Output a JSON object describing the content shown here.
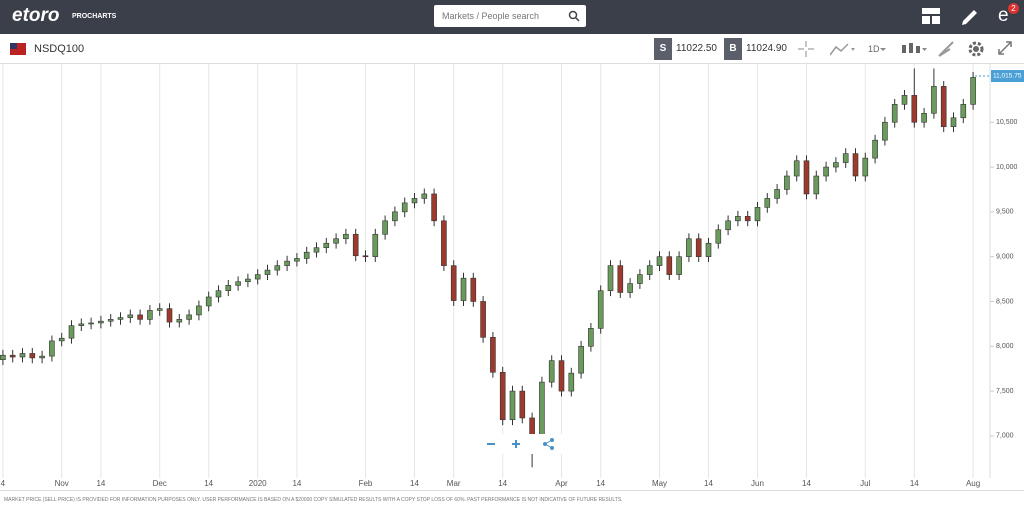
{
  "header": {
    "logo": "etoro",
    "logo_sub": "PROCHARTS",
    "search_placeholder": "Markets / People search",
    "badge": "2"
  },
  "toolbar": {
    "instrument": "NSDQ100",
    "sell_label": "S",
    "sell_price": "11022.50",
    "buy_label": "B",
    "buy_price": "11024.90",
    "interval": "1D"
  },
  "footer": {
    "disclaimer": "MARKET PRICE (SELL PRICE) IS PROVIDED FOR INFORMATION PURPOSES ONLY. USER PERFORMANCE IS BASED ON A $20000 COPY SIMULATED RESULTS WITH A COPY STOP LOSS OF 60%. PAST PERFORMANCE IS NOT INDICATIVE OF FUTURE RESULTS."
  },
  "chart_data": {
    "type": "candlestick",
    "categories": [
      "4",
      null,
      null,
      null,
      null,
      null,
      "Nov",
      null,
      null,
      null,
      "14",
      null,
      null,
      null,
      null,
      null,
      "Dec",
      null,
      null,
      null,
      null,
      "14",
      null,
      null,
      null,
      null,
      "2020",
      null,
      null,
      null,
      "14",
      null,
      null,
      null,
      null,
      null,
      null,
      "Feb",
      null,
      null,
      null,
      null,
      "14",
      null,
      null,
      null,
      "Mar",
      null,
      null,
      null,
      null,
      "14",
      null,
      null,
      null,
      null,
      null,
      "Apr",
      null,
      null,
      null,
      "14",
      null,
      null,
      null,
      null,
      null,
      "May",
      null,
      null,
      null,
      null,
      "14",
      null,
      null,
      null,
      null,
      "Jun",
      null,
      null,
      null,
      null,
      "14",
      null,
      null,
      null,
      null,
      null,
      "Jul",
      null,
      null,
      null,
      null,
      "14",
      null,
      null,
      null,
      null,
      null,
      "Aug"
    ],
    "open": [
      7850,
      7900,
      7880,
      7920,
      7870,
      7890,
      8060,
      8090,
      8230,
      8250,
      8260,
      8280,
      8300,
      8320,
      8350,
      8300,
      8400,
      8420,
      8270,
      8300,
      8350,
      8450,
      8550,
      8620,
      8680,
      8720,
      8750,
      8800,
      8850,
      8900,
      8950,
      8980,
      9050,
      9100,
      9150,
      9200,
      9250,
      9010,
      9000,
      9250,
      9400,
      9500,
      9600,
      9650,
      9700,
      9400,
      8900,
      8510,
      8760,
      8500,
      8100,
      7710,
      7180,
      7500,
      7200,
      6900,
      7600,
      7840,
      7500,
      7700,
      8000,
      8200,
      8620,
      8900,
      8600,
      8700,
      8800,
      8900,
      9000,
      8800,
      9000,
      9200,
      9000,
      9150,
      9300,
      9400,
      9450,
      9400,
      9550,
      9650,
      9750,
      9900,
      10070,
      9700,
      9900,
      10000,
      10050,
      10150,
      9900,
      10100,
      10300,
      10500,
      10700,
      10800,
      10500,
      10600,
      10900,
      10450,
      10550,
      10700
    ],
    "high": [
      7960,
      7960,
      7980,
      7980,
      7950,
      8120,
      8150,
      8290,
      8310,
      8320,
      8340,
      8360,
      8380,
      8410,
      8410,
      8460,
      8480,
      8480,
      8360,
      8410,
      8510,
      8610,
      8680,
      8740,
      8780,
      8810,
      8860,
      8910,
      8960,
      9010,
      9040,
      9110,
      9160,
      9210,
      9260,
      9310,
      9310,
      9070,
      9310,
      9460,
      9560,
      9660,
      9710,
      9760,
      9760,
      9460,
      8960,
      8820,
      8820,
      8560,
      8160,
      7770,
      7560,
      7560,
      7260,
      7660,
      7900,
      7900,
      7760,
      8060,
      8260,
      8680,
      8960,
      8960,
      8760,
      8860,
      8960,
      9060,
      9060,
      9060,
      9260,
      9260,
      9210,
      9360,
      9460,
      9510,
      9510,
      9610,
      9710,
      9810,
      9960,
      10130,
      10130,
      9960,
      10060,
      10110,
      10210,
      10210,
      10160,
      10360,
      10560,
      10760,
      10860,
      11100,
      10660,
      11100,
      10960,
      10610,
      10760,
      11060
    ],
    "low": [
      7790,
      7820,
      7820,
      7810,
      7810,
      7830,
      8000,
      8030,
      8170,
      8190,
      8200,
      8220,
      8240,
      8260,
      8240,
      8240,
      8340,
      8210,
      8210,
      8240,
      8290,
      8390,
      8490,
      8560,
      8620,
      8660,
      8690,
      8740,
      8790,
      8840,
      8890,
      8920,
      8990,
      9040,
      9090,
      9140,
      8950,
      8940,
      8940,
      9190,
      9340,
      9440,
      9540,
      9590,
      9340,
      8840,
      8450,
      8450,
      8440,
      8040,
      7650,
      7120,
      7120,
      7140,
      6650,
      6840,
      7540,
      7440,
      7440,
      7640,
      7940,
      8140,
      8560,
      8540,
      8540,
      8640,
      8740,
      8840,
      8740,
      8740,
      8940,
      8940,
      8940,
      9090,
      9240,
      9340,
      9340,
      9340,
      9490,
      9590,
      9690,
      9840,
      9640,
      9640,
      9840,
      9940,
      9990,
      9840,
      9840,
      10040,
      10240,
      10440,
      10640,
      10440,
      10440,
      10540,
      10390,
      10390,
      10490,
      10640
    ],
    "close": [
      7900,
      7880,
      7920,
      7870,
      7890,
      8060,
      8090,
      8230,
      8250,
      8260,
      8280,
      8300,
      8320,
      8350,
      8300,
      8400,
      8420,
      8270,
      8300,
      8350,
      8450,
      8550,
      8620,
      8680,
      8720,
      8750,
      8800,
      8850,
      8900,
      8950,
      8980,
      9050,
      9100,
      9150,
      9200,
      9250,
      9010,
      9000,
      9250,
      9400,
      9500,
      9600,
      9650,
      9700,
      9400,
      8900,
      8510,
      8760,
      8500,
      8100,
      7710,
      7180,
      7500,
      7200,
      6900,
      7600,
      7840,
      7500,
      7700,
      8000,
      8200,
      8620,
      8900,
      8600,
      8700,
      8800,
      8900,
      9000,
      8800,
      9000,
      9200,
      9000,
      9150,
      9300,
      9400,
      9450,
      9400,
      9550,
      9650,
      9750,
      9900,
      10070,
      9700,
      9900,
      10000,
      10050,
      10150,
      9900,
      10100,
      10300,
      10500,
      10700,
      10800,
      10500,
      10600,
      10900,
      10450,
      10550,
      10700,
      11000
    ],
    "up_color": "#6a9a5c",
    "down_color": "#9c3a2e",
    "ylim": [
      6530,
      11150
    ],
    "yticks": [
      {
        "value": 7000,
        "label": "7,000"
      },
      {
        "value": 7500,
        "label": "7,500"
      },
      {
        "value": 8000,
        "label": "8,000"
      },
      {
        "value": 8500,
        "label": "8,500"
      },
      {
        "value": 9000,
        "label": "9,000"
      },
      {
        "value": 9500,
        "label": "9,500"
      },
      {
        "value": 10000,
        "label": "10,000"
      },
      {
        "value": 10500,
        "label": "10,500"
      }
    ],
    "last_price": {
      "value": 11015.75,
      "label": "11,015.75"
    },
    "grid": true
  }
}
